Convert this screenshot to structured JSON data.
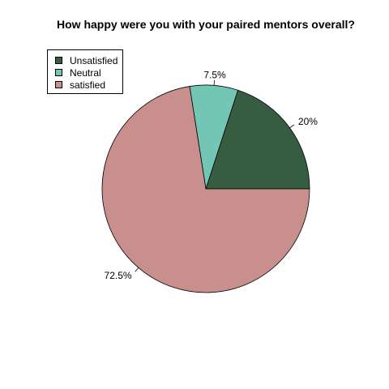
{
  "chart_data": {
    "type": "pie",
    "title": "How happy were you with your paired mentors overall?",
    "slices": [
      {
        "label": "Unsatisfied",
        "value": 20,
        "display": "20%",
        "color": "#365d42"
      },
      {
        "label": "Neutral",
        "value": 7.5,
        "display": "7.5%",
        "color": "#73c6b6"
      },
      {
        "label": "satisfied",
        "value": 72.5,
        "display": "72.5%",
        "color": "#c98f8d"
      }
    ],
    "legend_position": "top-left",
    "direction": "counterclockwise",
    "start": "3 o'clock"
  }
}
